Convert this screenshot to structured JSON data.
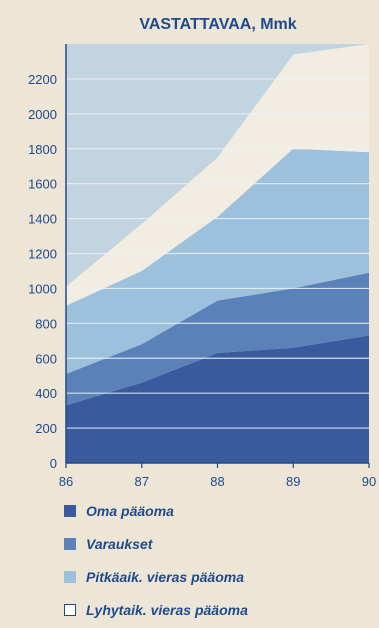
{
  "chart_data": {
    "type": "area",
    "stacked": true,
    "title": "VASTATTAVAA, Mmk",
    "x": [
      "86",
      "87",
      "88",
      "89",
      "90"
    ],
    "xlim": [
      86,
      90
    ],
    "ylim": [
      0,
      2400
    ],
    "yticks": [
      0,
      200,
      400,
      600,
      800,
      1000,
      1200,
      1400,
      1600,
      1800,
      2000,
      2200
    ],
    "grid": true,
    "legend_position": "bottom",
    "series": [
      {
        "name": "Oma pääoma",
        "color": "#3a5a9e",
        "values": [
          330,
          460,
          630,
          660,
          730
        ]
      },
      {
        "name": "Varaukset",
        "color": "#5b82b8",
        "values": [
          180,
          220,
          300,
          340,
          360
        ]
      },
      {
        "name": "Pitkäaik. vieras pääoma",
        "color": "#9dc0dd",
        "values": [
          390,
          420,
          480,
          800,
          690
        ]
      },
      {
        "name": "Lyhytaik. vieras pääoma",
        "color": "#f2ede2",
        "values": [
          110,
          270,
          340,
          540,
          620
        ]
      }
    ],
    "plot_background": "#c2d4e0",
    "grid_color": "#edf2f6",
    "text_color": "#1f4a8c"
  }
}
